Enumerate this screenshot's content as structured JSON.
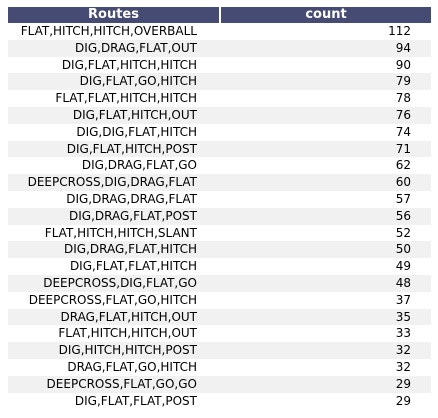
{
  "colors": {
    "header_bg": "#454b72",
    "stripe": "#f1f1f1",
    "plain": "#ffffff",
    "header_text": "#ffffff"
  },
  "chart_data": {
    "type": "table",
    "columns": [
      "Routes",
      "count"
    ],
    "rows": [
      [
        "FLAT,HITCH,HITCH,OVERBALL",
        112
      ],
      [
        "DIG,DRAG,FLAT,OUT",
        94
      ],
      [
        "DIG,FLAT,HITCH,HITCH",
        90
      ],
      [
        "DIG,FLAT,GO,HITCH",
        79
      ],
      [
        "FLAT,FLAT,HITCH,HITCH",
        78
      ],
      [
        "DIG,FLAT,HITCH,OUT",
        76
      ],
      [
        "DIG,DIG,FLAT,HITCH",
        74
      ],
      [
        "DIG,FLAT,HITCH,POST",
        71
      ],
      [
        "DIG,DRAG,FLAT,GO",
        62
      ],
      [
        "DEEPCROSS,DIG,DRAG,FLAT",
        60
      ],
      [
        "DIG,DRAG,DRAG,FLAT",
        57
      ],
      [
        "DIG,DRAG,FLAT,POST",
        56
      ],
      [
        "FLAT,HITCH,HITCH,SLANT",
        52
      ],
      [
        "DIG,DRAG,FLAT,HITCH",
        50
      ],
      [
        "DIG,FLAT,FLAT,HITCH",
        49
      ],
      [
        "DEEPCROSS,DIG,FLAT,GO",
        48
      ],
      [
        "DEEPCROSS,FLAT,GO,HITCH",
        37
      ],
      [
        "DRAG,FLAT,HITCH,OUT",
        35
      ],
      [
        "FLAT,HITCH,HITCH,OUT",
        33
      ],
      [
        "DIG,HITCH,HITCH,POST",
        32
      ],
      [
        "DRAG,FLAT,GO,HITCH",
        32
      ],
      [
        "DEEPCROSS,FLAT,GO,GO",
        29
      ],
      [
        "DIG,FLAT,FLAT,POST",
        29
      ]
    ]
  }
}
